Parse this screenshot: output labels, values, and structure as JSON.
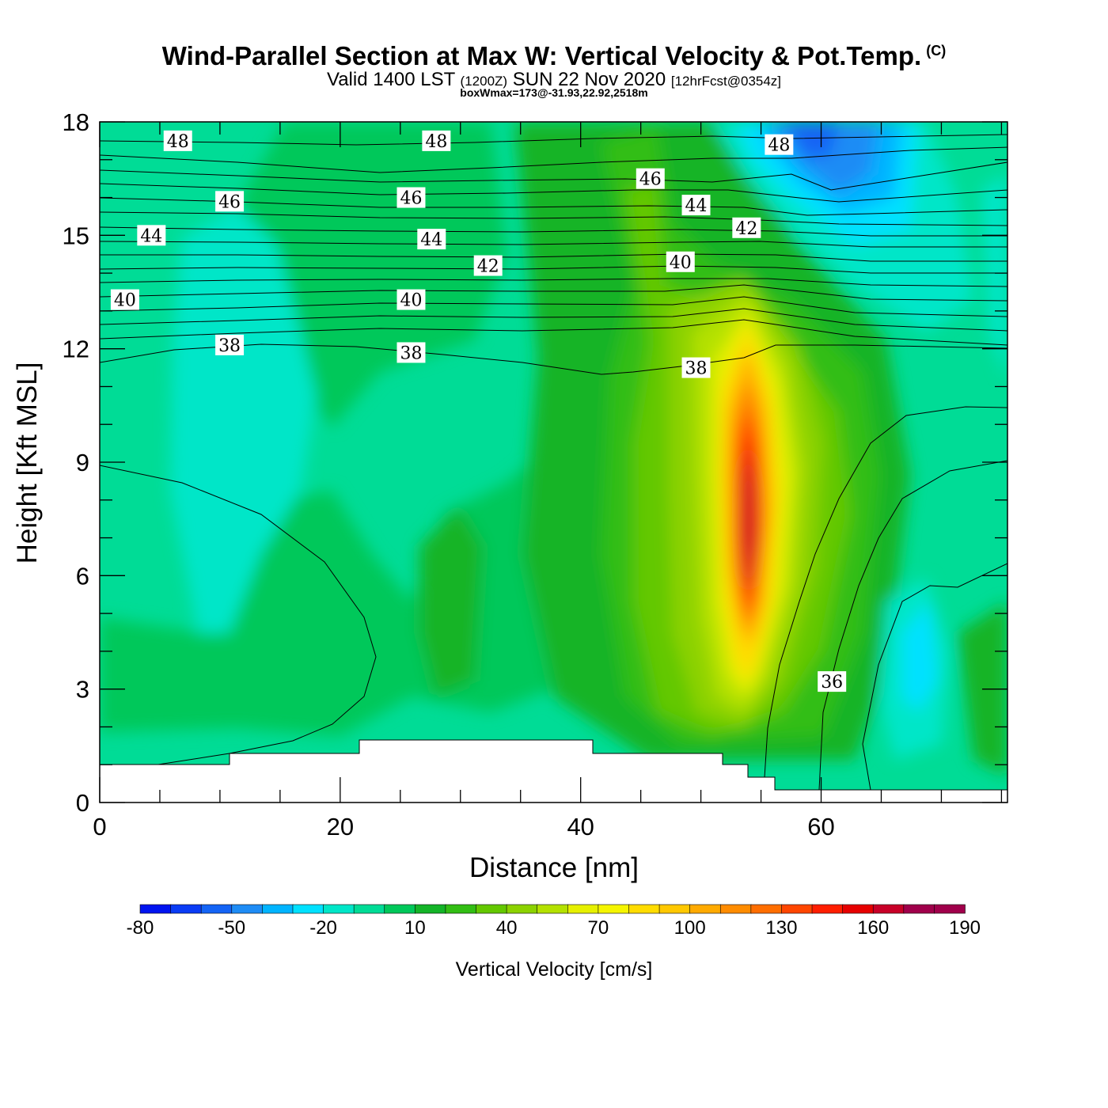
{
  "header": {
    "title": "Wind-Parallel Section at Max W: Vertical Velocity & Pot.Temp.",
    "copyright": "(C)",
    "valid_prefix": "Valid 1400 LST",
    "valid_utc": "(1200Z)",
    "valid_date": "SUN 22 Nov 2020",
    "forecast": "[12hrFcst@0354z]",
    "boxwmax": "boxWmax=173@-31.93,22.92,2518m"
  },
  "chart_data": {
    "type": "heatmap",
    "title": "Wind-Parallel Section at Max W: Vertical Velocity & Pot.Temp.",
    "xlabel": "Distance [nm]",
    "ylabel": "Height [Kft MSL]",
    "xlim": [
      0,
      75.5
    ],
    "ylim": [
      0,
      18
    ],
    "xticks": [
      0,
      20,
      40,
      60
    ],
    "yticks": [
      0,
      3,
      6,
      9,
      12,
      15,
      18
    ],
    "colorbar": {
      "label": "Vertical Velocity [cm/s]",
      "levels": [
        -80,
        -70,
        -60,
        -50,
        -40,
        -30,
        -20,
        -10,
        0,
        10,
        20,
        30,
        40,
        50,
        60,
        70,
        80,
        90,
        100,
        110,
        120,
        130,
        140,
        150,
        160,
        170,
        180,
        190
      ],
      "tick_labels": [
        "-80",
        "-50",
        "-20",
        "10",
        "40",
        "70",
        "100",
        "130",
        "160",
        "190"
      ],
      "colors": [
        "#0014f0",
        "#0a3cf5",
        "#1464f5",
        "#1e8cf5",
        "#00b4ff",
        "#00e1ff",
        "#00e6c8",
        "#00dc96",
        "#00c85a",
        "#14b428",
        "#32be14",
        "#64c800",
        "#8cd200",
        "#b4e100",
        "#e6f000",
        "#f5f500",
        "#ffdc00",
        "#ffc800",
        "#ffaa00",
        "#ff8c00",
        "#ff6e00",
        "#ff4600",
        "#ff1e00",
        "#e60000",
        "#c80028",
        "#a0004b",
        "#a0004b"
      ]
    },
    "w_field": {
      "units": "cm/s",
      "max": 173,
      "max_location": {
        "distance_nm": 54,
        "height_kft": 7
      },
      "features": [
        {
          "name": "updraft core",
          "x_nm": 54,
          "y_kft": 7.0,
          "peak": 173
        },
        {
          "name": "upper downdraft",
          "x_nm": 60,
          "y_kft": 17.5,
          "peak": -65
        },
        {
          "name": "lower-right downdraft",
          "x_nm": 68,
          "y_kft": 3.5,
          "peak": -20
        },
        {
          "name": "left weak sinking",
          "x_nm": 11,
          "y_kft": 11,
          "peak": -15
        }
      ]
    },
    "theta_contours": {
      "units": "potential temperature",
      "labels": [
        {
          "text": "48",
          "x_nm": 6.5,
          "y_kft": 17.5
        },
        {
          "text": "48",
          "x_nm": 28.0,
          "y_kft": 17.5
        },
        {
          "text": "48",
          "x_nm": 56.5,
          "y_kft": 17.4
        },
        {
          "text": "46",
          "x_nm": 10.8,
          "y_kft": 15.9
        },
        {
          "text": "46",
          "x_nm": 25.9,
          "y_kft": 16.0
        },
        {
          "text": "46",
          "x_nm": 45.8,
          "y_kft": 16.5
        },
        {
          "text": "44",
          "x_nm": 4.3,
          "y_kft": 15.0
        },
        {
          "text": "44",
          "x_nm": 27.6,
          "y_kft": 14.9
        },
        {
          "text": "44",
          "x_nm": 49.6,
          "y_kft": 15.8
        },
        {
          "text": "42",
          "x_nm": 32.3,
          "y_kft": 14.2
        },
        {
          "text": "42",
          "x_nm": 53.8,
          "y_kft": 15.2
        },
        {
          "text": "40",
          "x_nm": 2.1,
          "y_kft": 13.3
        },
        {
          "text": "40",
          "x_nm": 25.9,
          "y_kft": 13.3
        },
        {
          "text": "40",
          "x_nm": 48.3,
          "y_kft": 14.3
        },
        {
          "text": "38",
          "x_nm": 10.8,
          "y_kft": 12.1
        },
        {
          "text": "38",
          "x_nm": 25.9,
          "y_kft": 11.9
        },
        {
          "text": "38",
          "x_nm": 49.6,
          "y_kft": 11.5
        },
        {
          "text": "36",
          "x_nm": 60.9,
          "y_kft": 3.2
        }
      ]
    },
    "terrain_steps": [
      {
        "x0": 0,
        "x1": 10.8,
        "height_kft": 1.0
      },
      {
        "x0": 10.8,
        "x1": 21.6,
        "height_kft": 1.3
      },
      {
        "x0": 21.6,
        "x1": 41.0,
        "height_kft": 1.65
      },
      {
        "x0": 41.0,
        "x1": 51.8,
        "height_kft": 1.3
      },
      {
        "x0": 51.8,
        "x1": 53.9,
        "height_kft": 1.0
      },
      {
        "x0": 53.9,
        "x1": 56.1,
        "height_kft": 0.65
      },
      {
        "x0": 56.1,
        "x1": 75.5,
        "height_kft": 0.35
      }
    ]
  }
}
